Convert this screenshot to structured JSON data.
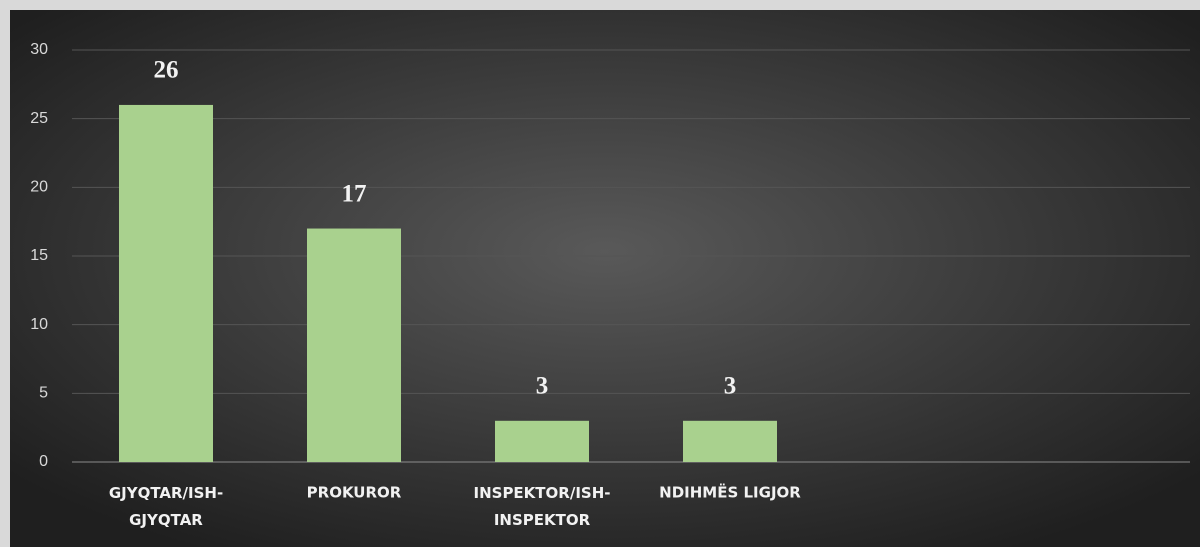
{
  "chart_data": {
    "type": "bar",
    "categories": [
      "GJYQTAR/ISH-GJYQTAR",
      "PROKUROR",
      "INSPEKTOR/ISH-INSPEKTOR",
      "NDIHMËS LIGJOR",
      null,
      null
    ],
    "values": [
      26,
      17,
      3,
      3,
      null,
      null
    ],
    "color": "#a9d18e",
    "ylim": [
      0,
      30
    ],
    "yticks": [
      0,
      5,
      10,
      15,
      20,
      25,
      30
    ],
    "grid": true
  }
}
